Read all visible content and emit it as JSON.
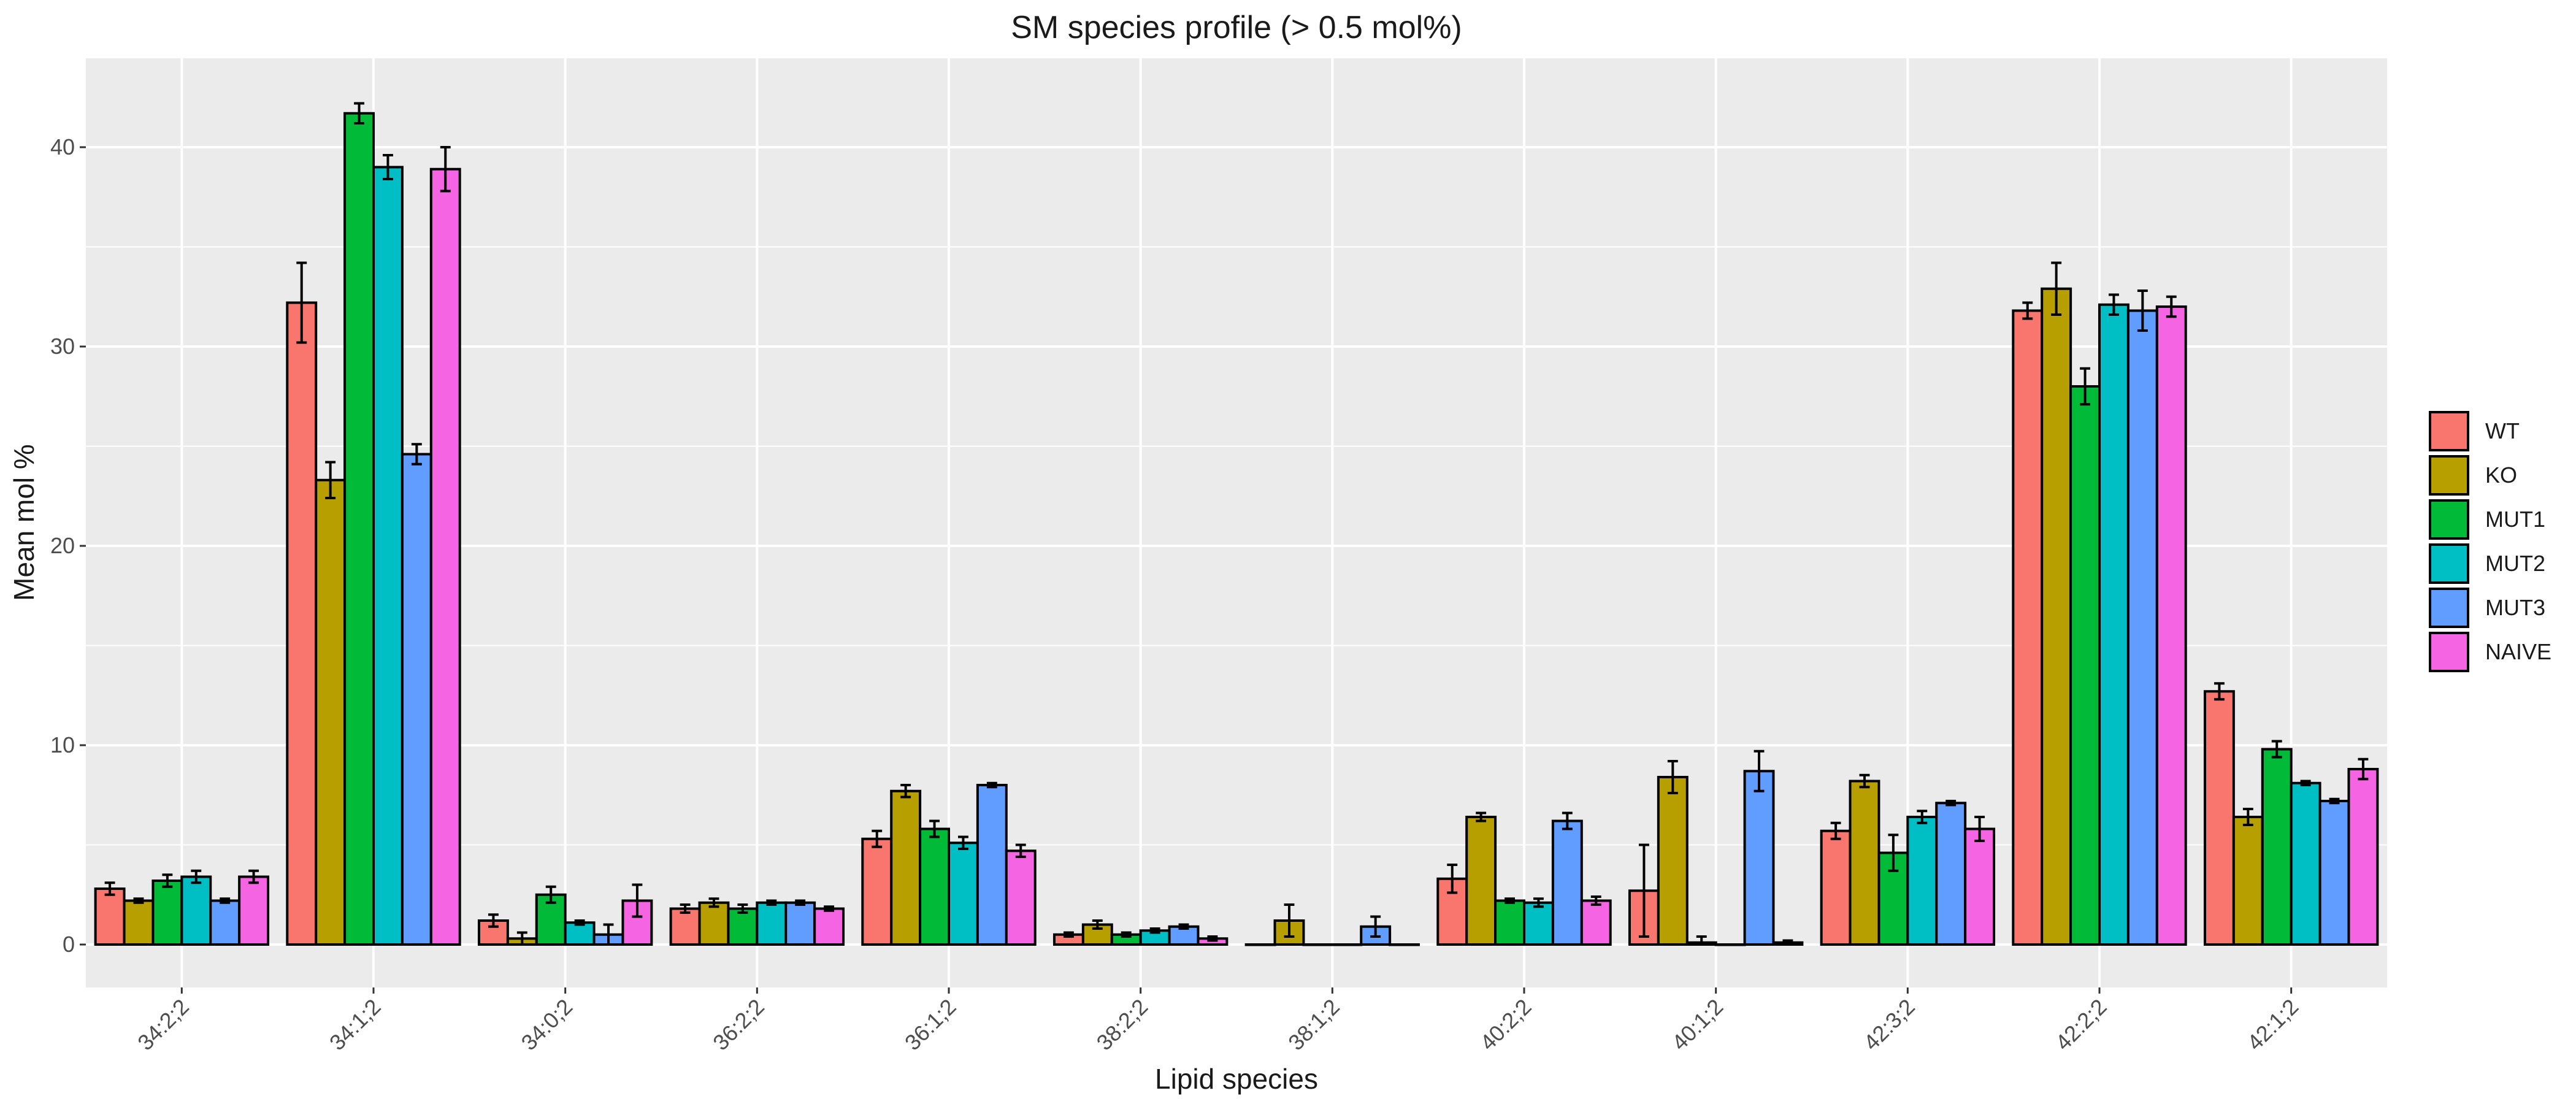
{
  "chart_data": {
    "type": "bar",
    "title": "SM species profile (> 0.5 mol%)",
    "xlabel": "Lipid species",
    "ylabel": "Mean mol %",
    "ylim": [
      0,
      44
    ],
    "y_ticks": [
      0,
      10,
      20,
      30,
      40
    ],
    "grid": true,
    "legend_position": "right",
    "error_bars": true,
    "categories": [
      "34:2;2",
      "34:1;2",
      "34:0;2",
      "36:2;2",
      "36:1;2",
      "38:2;2",
      "38:1;2",
      "40:2;2",
      "40:1;2",
      "42:3;2",
      "42:2;2",
      "42:1;2"
    ],
    "series": [
      {
        "name": "WT",
        "color": "#F8766D",
        "values": [
          2.8,
          32.2,
          1.2,
          1.8,
          5.3,
          0.5,
          0.0,
          3.3,
          2.7,
          5.7,
          31.8,
          12.7
        ],
        "errors": [
          0.3,
          2.0,
          0.3,
          0.2,
          0.4,
          0.1,
          0.0,
          0.7,
          2.3,
          0.4,
          0.4,
          0.4
        ]
      },
      {
        "name": "KO",
        "color": "#B79F00",
        "values": [
          2.2,
          23.3,
          0.3,
          2.1,
          7.7,
          1.0,
          1.2,
          6.4,
          8.4,
          8.2,
          32.9,
          6.4
        ],
        "errors": [
          0.1,
          0.9,
          0.3,
          0.2,
          0.3,
          0.2,
          0.8,
          0.2,
          0.8,
          0.3,
          1.3,
          0.4
        ]
      },
      {
        "name": "MUT1",
        "color": "#00BA38",
        "values": [
          3.2,
          41.7,
          2.5,
          1.8,
          5.8,
          0.5,
          0.0,
          2.2,
          0.1,
          4.6,
          28.0,
          9.8
        ],
        "errors": [
          0.3,
          0.5,
          0.4,
          0.2,
          0.4,
          0.1,
          0.0,
          0.1,
          0.3,
          0.9,
          0.9,
          0.4
        ]
      },
      {
        "name": "MUT2",
        "color": "#00BFC4",
        "values": [
          3.4,
          39.0,
          1.1,
          2.1,
          5.1,
          0.7,
          0.0,
          2.1,
          0.0,
          6.4,
          32.1,
          8.1
        ],
        "errors": [
          0.3,
          0.6,
          0.1,
          0.1,
          0.3,
          0.1,
          0.0,
          0.2,
          0.0,
          0.3,
          0.5,
          0.1
        ]
      },
      {
        "name": "MUT3",
        "color": "#619CFF",
        "values": [
          2.2,
          24.6,
          0.5,
          2.1,
          8.0,
          0.9,
          0.9,
          6.2,
          8.7,
          7.1,
          31.8,
          7.2
        ],
        "errors": [
          0.1,
          0.5,
          0.5,
          0.1,
          0.1,
          0.1,
          0.5,
          0.4,
          1.0,
          0.1,
          1.0,
          0.1
        ]
      },
      {
        "name": "NAIVE",
        "color": "#F564E3",
        "values": [
          3.4,
          38.9,
          2.2,
          1.8,
          4.7,
          0.3,
          0.0,
          2.2,
          0.1,
          5.8,
          32.0,
          8.8
        ],
        "errors": [
          0.3,
          1.1,
          0.8,
          0.1,
          0.3,
          0.1,
          0.0,
          0.2,
          0.1,
          0.6,
          0.5,
          0.5
        ]
      }
    ]
  }
}
